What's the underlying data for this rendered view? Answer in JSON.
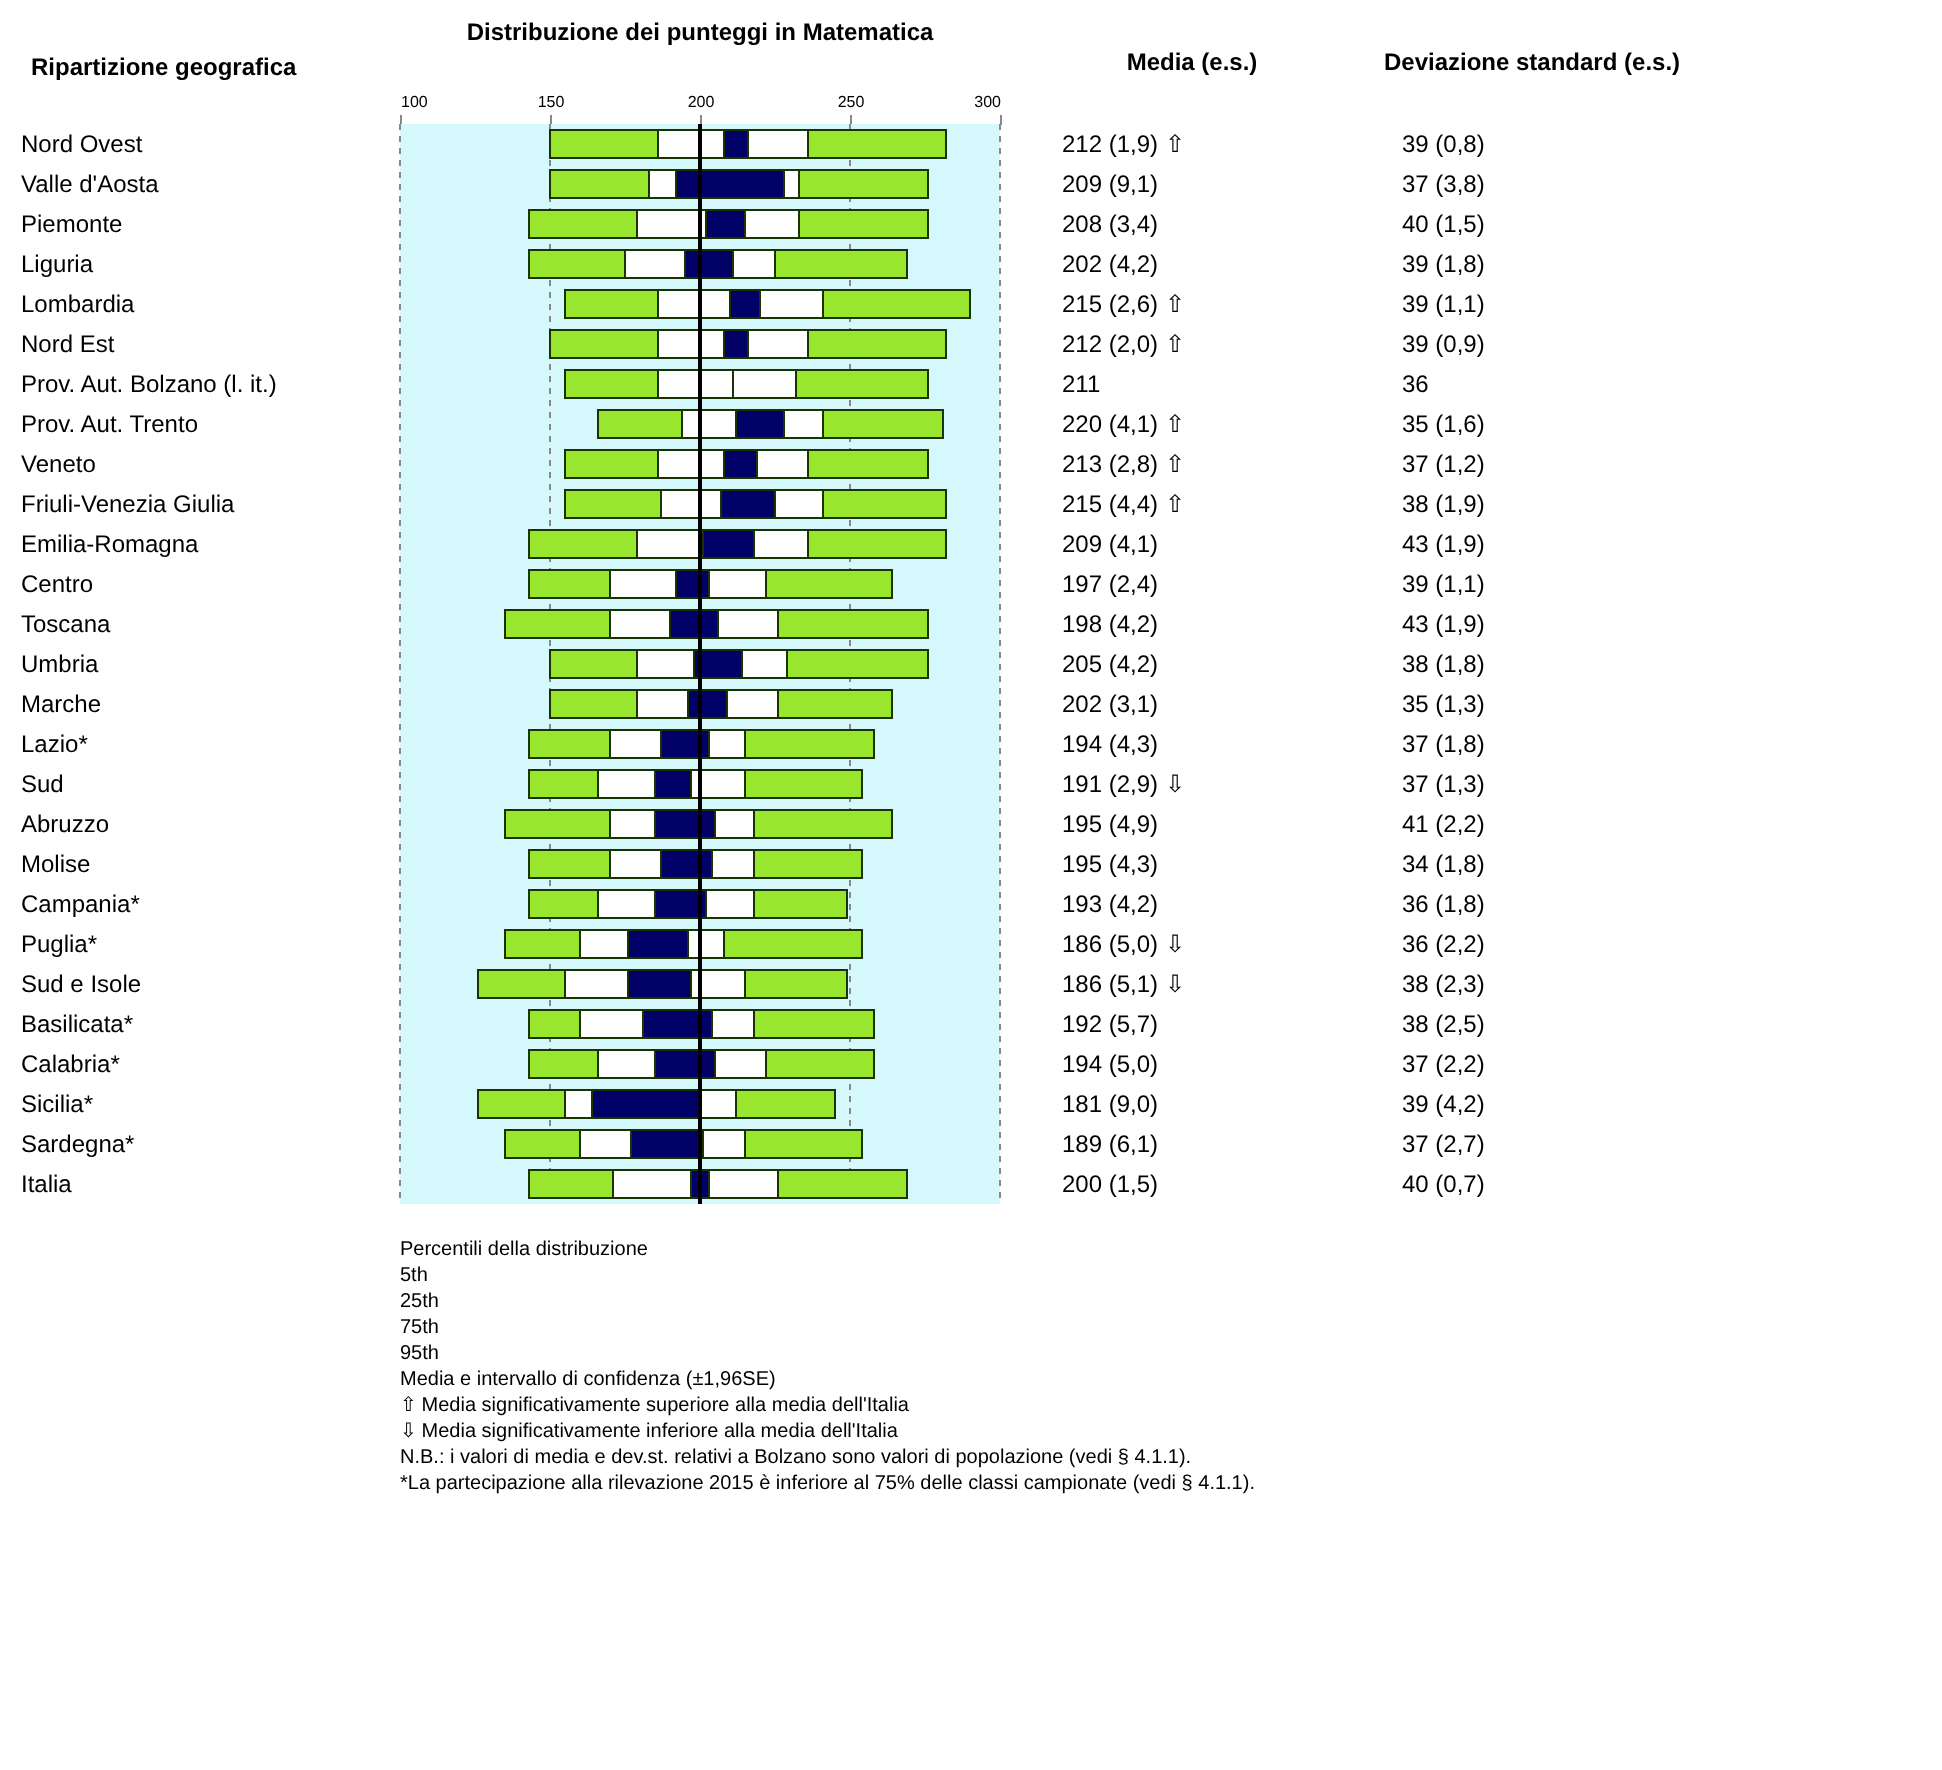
{
  "chart_data": [
    {
      "type": "bar",
      "orientation": "horizontal",
      "title": "Distribuzione dei punteggi in Matematica",
      "ylabel": "Ripartizione geografica",
      "categories": [
        "Nord Ovest",
        "Valle d'Aosta",
        "Piemonte",
        "Liguria",
        "Lombardia",
        "Nord Est",
        "Prov. Aut. Bolzano (l. it.)",
        "Prov. Aut. Trento",
        "Veneto",
        "Friuli-Venezia Giulia",
        "Emilia-Romagna",
        "Centro",
        "Toscana",
        "Umbria",
        "Marche",
        "Lazio*",
        "Sud",
        "Abruzzo",
        "Molise",
        "Campania*",
        "Puglia*",
        "Sud e Isole",
        "Basilicata*",
        "Calabria*",
        "Sicilia*",
        "Sardegna*",
        "Italia"
      ],
      "series": [
        {
          "color": "#99e62e",
          "base": [
            150,
            150,
            143,
            143,
            155,
            150,
            155,
            166,
            155,
            155,
            143,
            143,
            135,
            150,
            150,
            143,
            143,
            135,
            143,
            143,
            135,
            126,
            143,
            143,
            126,
            135,
            143
          ],
          "values": [
            36,
            33,
            36,
            32,
            31,
            36,
            31,
            28,
            31,
            32,
            36,
            27,
            35,
            29,
            29,
            27,
            23,
            35,
            27,
            23,
            25,
            29,
            17,
            23,
            29,
            25,
            28
          ]
        },
        {
          "color": "#ffffff",
          "base": [
            186,
            183,
            179,
            175,
            186,
            186,
            186,
            194,
            186,
            187,
            179,
            170,
            170,
            179,
            179,
            170,
            166,
            170,
            170,
            166,
            160,
            155,
            160,
            166,
            155,
            160,
            171
          ],
          "values": [
            22,
            9,
            23,
            20,
            24,
            22,
            25,
            18,
            22,
            20,
            22,
            22,
            20,
            19,
            17,
            17,
            19,
            15,
            17,
            19,
            16,
            21,
            21,
            19,
            9,
            17,
            26
          ]
        },
        {
          "color": "#000066",
          "base": [
            208,
            192,
            202,
            195,
            210,
            208,
            null,
            212,
            208,
            207,
            201,
            192,
            190,
            198,
            196,
            187,
            185,
            185,
            187,
            185,
            176,
            176,
            181,
            185,
            164,
            177,
            197
          ],
          "values": [
            8,
            36,
            13,
            16,
            10,
            8,
            null,
            16,
            11,
            18,
            17,
            11,
            16,
            16,
            13,
            16,
            12,
            20,
            17,
            17,
            20,
            21,
            23,
            20,
            36,
            24,
            6
          ]
        },
        {
          "color": "#ffffff",
          "base": [
            216,
            228,
            215,
            211,
            220,
            216,
            211,
            228,
            219,
            225,
            218,
            203,
            206,
            214,
            209,
            203,
            197,
            205,
            204,
            202,
            196,
            197,
            204,
            205,
            200,
            201,
            203
          ],
          "values": [
            20,
            5,
            18,
            14,
            21,
            20,
            21,
            13,
            17,
            16,
            18,
            19,
            20,
            15,
            17,
            12,
            18,
            13,
            14,
            16,
            12,
            18,
            14,
            17,
            12,
            14,
            23
          ]
        },
        {
          "color": "#99e62e",
          "base": [
            236,
            233,
            233,
            225,
            241,
            236,
            232,
            241,
            236,
            241,
            236,
            222,
            226,
            229,
            226,
            215,
            215,
            218,
            218,
            218,
            208,
            215,
            218,
            222,
            212,
            215,
            226
          ],
          "values": [
            46,
            43,
            43,
            44,
            49,
            46,
            44,
            40,
            40,
            41,
            46,
            42,
            50,
            47,
            38,
            43,
            39,
            46,
            36,
            31,
            46,
            34,
            40,
            36,
            33,
            39,
            43
          ]
        }
      ],
      "xlim": [
        100,
        300
      ],
      "xticks": [
        100,
        150,
        200,
        250,
        300
      ],
      "grid": "x",
      "bands": [
        {
          "axis": "x",
          "from": 100,
          "to": 300,
          "color": "#d4f8fc"
        }
      ],
      "ref_lines": [
        {
          "axis": "x",
          "value": 200,
          "color": "#000000",
          "line_style": "solid"
        }
      ],
      "annotations": [
        "Percentili della distribuzione",
        "5th",
        "25th",
        "75th",
        "95th",
        "Media e intervallo di confidenza (±1,96SE)",
        "⇧ Media significativamente superiore alla media dell'Italia",
        "⇩ Media significativamente inferiore alla media dell'Italia",
        "N.B.: i valori di media e dev.st. relativi a Bolzano sono valori di popolazione (vedi § 4.1.1).",
        "*La partecipazione alla rilevazione 2015 è inferiore al 75% delle classi campionate (vedi § 4.1.1)."
      ]
    },
    {
      "type": "other",
      "title": "Media (e.s.)",
      "annotations": [
        "212 (1,9)   ⇧",
        "209 (9,1)",
        "208 (3,4)",
        "202 (4,2)",
        "215 (2,6)   ⇧",
        "212 (2,0)   ⇧",
        "211",
        "220 (4,1)   ⇧",
        "213 (2,8)   ⇧",
        "215 (4,4)   ⇧",
        "209 (4,1)",
        "197 (2,4)",
        "198 (4,2)",
        "205 (4,2)",
        "202 (3,1)",
        "194 (4,3)",
        "191 (2,9)   ⇩",
        "195 (4,9)",
        "195 (4,3)",
        "193 (4,2)",
        "186 (5,0)   ⇩",
        "186 (5,1)   ⇩",
        "192 (5,7)",
        "194 (5,0)",
        "181 (9,0)",
        "189 (6,1)",
        "200 (1,5)"
      ]
    },
    {
      "type": "other",
      "title": "Deviazione standard (e.s.)",
      "annotations": [
        "39 (0,8)",
        "37 (3,8)",
        "40 (1,5)",
        "39 (1,8)",
        "39 (1,1)",
        "39 (0,9)",
        "36",
        "35 (1,6)",
        "37 (1,2)",
        "38 (1,9)",
        "43 (1,9)",
        "39 (1,1)",
        "43 (1,9)",
        "38 (1,8)",
        "35 (1,3)",
        "37 (1,8)",
        "37 (1,3)",
        "41 (2,2)",
        "34 (1,8)",
        "36 (1,8)",
        "36 (2,2)",
        "38 (2,3)",
        "38 (2,5)",
        "37 (2,2)",
        "39 (4,2)",
        "37 (2,7)",
        "40 (0,7)"
      ]
    }
  ]
}
